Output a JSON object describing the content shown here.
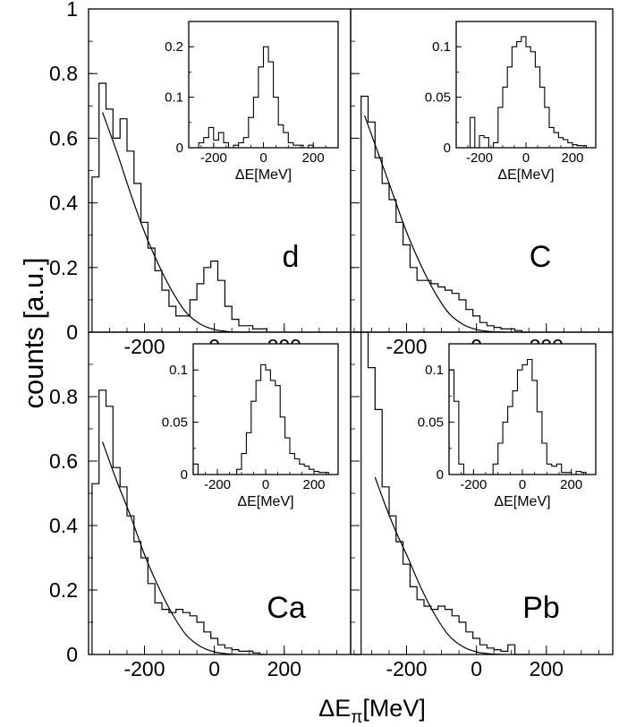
{
  "figure": {
    "ylabel": "counts [a.u.]",
    "xlabel_prefix": "ΔE",
    "xlabel_subscript": "π",
    "xlabel_suffix": "[MeV]"
  },
  "chart_data": [
    {
      "type": "line",
      "panel": "d",
      "xlim": [
        -360,
        390
      ],
      "ylim": [
        0,
        1
      ],
      "x_ticks": [
        "-200",
        "0",
        "200"
      ],
      "y_ticks": [
        "0",
        "0.2",
        "0.4",
        "0.6",
        "0.8",
        "1"
      ],
      "histogram": {
        "bin_edges": [
          -350,
          -330,
          -310,
          -290,
          -270,
          -250,
          -230,
          -210,
          -190,
          -170,
          -150,
          -130,
          -110,
          -90,
          -70,
          -50,
          -30,
          -10,
          10,
          30,
          50,
          70,
          90,
          110,
          130,
          150
        ],
        "values": [
          0.48,
          0.77,
          0.69,
          0.6,
          0.66,
          0.56,
          0.46,
          0.34,
          0.26,
          0.19,
          0.13,
          0.08,
          0.05,
          0.05,
          0.1,
          0.15,
          0.2,
          0.22,
          0.16,
          0.08,
          0.04,
          0.02,
          0.02,
          0.01,
          0.01
        ]
      },
      "fit_curve": {
        "x": [
          -320,
          -280,
          -240,
          -200,
          -160,
          -120,
          -80,
          -40,
          0,
          40,
          80,
          100
        ],
        "y": [
          0.68,
          0.56,
          0.43,
          0.31,
          0.21,
          0.125,
          0.06,
          0.025,
          0.008,
          0.002,
          0.0,
          0.0
        ]
      },
      "inset": {
        "xlabel": "ΔE[MeV]",
        "xlim": [
          -300,
          300
        ],
        "ylim": [
          0,
          0.25
        ],
        "x_ticks": [
          "-200",
          "0",
          "200"
        ],
        "y_ticks": [
          "0",
          "0.1",
          "0.2"
        ],
        "histogram": {
          "bin_edges": [
            -260,
            -240,
            -220,
            -200,
            -180,
            -160,
            -140,
            -120,
            -100,
            -80,
            -60,
            -40,
            -20,
            0,
            20,
            40,
            60,
            80,
            100,
            120,
            140,
            160,
            180,
            200,
            220,
            240,
            260,
            280
          ],
          "values": [
            0.01,
            0.02,
            0.04,
            0.015,
            0.03,
            0.01,
            0.0,
            0.005,
            0.01,
            0.02,
            0.06,
            0.1,
            0.16,
            0.2,
            0.17,
            0.1,
            0.045,
            0.03,
            0.01,
            0.005,
            0.005,
            0.0,
            0.005,
            0.0,
            0.0,
            0.0,
            0.0
          ]
        }
      }
    },
    {
      "type": "line",
      "panel": "C",
      "xlim": [
        -360,
        390
      ],
      "ylim": [
        0,
        1
      ],
      "x_ticks": [
        "-200",
        "0",
        "200"
      ],
      "y_ticks": [],
      "histogram": {
        "bin_edges": [
          -350,
          -330,
          -310,
          -290,
          -270,
          -250,
          -230,
          -210,
          -190,
          -170,
          -150,
          -130,
          -110,
          -90,
          -70,
          -50,
          -30,
          -10,
          10,
          30,
          50,
          70,
          90,
          110,
          130,
          150
        ],
        "values": [
          0.0,
          0.73,
          0.65,
          0.54,
          0.46,
          0.41,
          0.34,
          0.27,
          0.2,
          0.16,
          0.16,
          0.15,
          0.14,
          0.13,
          0.12,
          0.1,
          0.07,
          0.05,
          0.03,
          0.02,
          0.015,
          0.01,
          0.01,
          0.005,
          0.0
        ]
      },
      "fit_curve": {
        "x": [
          -320,
          -280,
          -240,
          -200,
          -160,
          -120,
          -80,
          -40,
          0,
          40,
          80
        ],
        "y": [
          0.67,
          0.55,
          0.43,
          0.31,
          0.21,
          0.125,
          0.06,
          0.025,
          0.008,
          0.002,
          0.0
        ]
      },
      "inset": {
        "xlabel": "ΔE[MeV]",
        "xlim": [
          -300,
          300
        ],
        "ylim": [
          0,
          0.125
        ],
        "x_ticks": [
          "-200",
          "0",
          "200"
        ],
        "y_ticks": [
          "0",
          "0.05",
          "0.1"
        ],
        "histogram": {
          "bin_edges": [
            -260,
            -240,
            -220,
            -200,
            -180,
            -160,
            -140,
            -120,
            -100,
            -80,
            -60,
            -40,
            -20,
            0,
            20,
            40,
            60,
            80,
            100,
            120,
            140,
            160,
            180,
            200,
            220,
            240,
            260,
            280
          ],
          "values": [
            0.0,
            0.03,
            0.0,
            0.012,
            0.01,
            0.0,
            0.005,
            0.04,
            0.06,
            0.08,
            0.1,
            0.105,
            0.11,
            0.1,
            0.095,
            0.08,
            0.06,
            0.04,
            0.02,
            0.015,
            0.01,
            0.008,
            0.005,
            0.003,
            0.002,
            0.002,
            0.0
          ]
        }
      }
    },
    {
      "type": "line",
      "panel": "Ca",
      "xlim": [
        -360,
        390
      ],
      "ylim": [
        0,
        1
      ],
      "x_ticks": [
        "-200",
        "0",
        "200"
      ],
      "y_ticks": [
        "0",
        "0.2",
        "0.4",
        "0.6",
        "0.8"
      ],
      "histogram": {
        "bin_edges": [
          -350,
          -330,
          -310,
          -290,
          -270,
          -250,
          -230,
          -210,
          -190,
          -170,
          -150,
          -130,
          -110,
          -90,
          -70,
          -50,
          -30,
          -10,
          10,
          30,
          50,
          70,
          90,
          110,
          130,
          150
        ],
        "values": [
          0.53,
          0.82,
          0.77,
          0.58,
          0.52,
          0.43,
          0.35,
          0.3,
          0.22,
          0.16,
          0.14,
          0.13,
          0.14,
          0.13,
          0.12,
          0.1,
          0.07,
          0.05,
          0.03,
          0.02,
          0.015,
          0.01,
          0.01,
          0.005,
          0.0
        ]
      },
      "fit_curve": {
        "x": [
          -320,
          -280,
          -240,
          -200,
          -160,
          -120,
          -80,
          -40,
          0,
          40,
          80
        ],
        "y": [
          0.66,
          0.54,
          0.43,
          0.31,
          0.21,
          0.125,
          0.06,
          0.025,
          0.008,
          0.002,
          0.0
        ]
      },
      "inset": {
        "xlabel": "ΔE[MeV]",
        "xlim": [
          -300,
          300
        ],
        "ylim": [
          0,
          0.125
        ],
        "x_ticks": [
          "-200",
          "0",
          "200"
        ],
        "y_ticks": [
          "0",
          "0.05",
          "0.1"
        ],
        "histogram": {
          "bin_edges": [
            -300,
            -280,
            -260,
            -240,
            -220,
            -200,
            -180,
            -160,
            -140,
            -120,
            -100,
            -80,
            -60,
            -40,
            -20,
            0,
            20,
            40,
            60,
            80,
            100,
            120,
            140,
            160,
            180,
            200,
            220,
            240,
            260,
            280,
            300
          ],
          "values": [
            0.01,
            0.0,
            0.0,
            0.0,
            0.0,
            0.0,
            0.0,
            0.0,
            0.0,
            0.005,
            0.02,
            0.04,
            0.07,
            0.09,
            0.105,
            0.1,
            0.09,
            0.085,
            0.055,
            0.035,
            0.02,
            0.015,
            0.01,
            0.008,
            0.005,
            0.003,
            0.002,
            0.002,
            0.0,
            0.0
          ]
        }
      }
    },
    {
      "type": "line",
      "panel": "Pb",
      "xlim": [
        -360,
        390
      ],
      "ylim": [
        0,
        1
      ],
      "x_ticks": [
        "-200",
        "0",
        "200"
      ],
      "y_ticks": [],
      "histogram": {
        "bin_edges": [
          -350,
          -330,
          -310,
          -290,
          -270,
          -250,
          -230,
          -210,
          -190,
          -170,
          -150,
          -130,
          -110,
          -90,
          -70,
          -50,
          -30,
          -10,
          10,
          30,
          50,
          70,
          90,
          110,
          130,
          150
        ],
        "values": [
          0.0,
          1.05,
          0.89,
          0.76,
          0.52,
          0.43,
          0.35,
          0.28,
          0.21,
          0.17,
          0.15,
          0.14,
          0.15,
          0.14,
          0.12,
          0.1,
          0.07,
          0.05,
          0.03,
          0.02,
          0.015,
          0.01,
          0.03,
          0.0,
          0.0
        ]
      },
      "fit_curve": {
        "x": [
          -290,
          -260,
          -230,
          -200,
          -160,
          -120,
          -80,
          -40,
          0,
          40,
          80
        ],
        "y": [
          0.55,
          0.46,
          0.38,
          0.31,
          0.21,
          0.125,
          0.06,
          0.025,
          0.008,
          0.002,
          0.0
        ]
      },
      "inset": {
        "xlabel": "ΔE[MeV]",
        "xlim": [
          -300,
          300
        ],
        "ylim": [
          0,
          0.125
        ],
        "x_ticks": [
          "-200",
          "0",
          "200"
        ],
        "y_ticks": [
          "0",
          "0.05",
          "0.1"
        ],
        "histogram": {
          "bin_edges": [
            -300,
            -280,
            -260,
            -240,
            -220,
            -200,
            -180,
            -160,
            -140,
            -120,
            -100,
            -80,
            -60,
            -40,
            -20,
            0,
            20,
            40,
            60,
            80,
            100,
            120,
            140,
            160,
            180,
            200,
            220,
            240,
            260,
            280,
            300
          ],
          "values": [
            0.1,
            0.07,
            0.01,
            0.0,
            0.0,
            0.0,
            0.0,
            0.0,
            0.0,
            0.01,
            0.03,
            0.05,
            0.065,
            0.08,
            0.1,
            0.105,
            0.11,
            0.09,
            0.06,
            0.03,
            0.01,
            0.008,
            0.01,
            0.002,
            0.002,
            0.0,
            0.003,
            0.002,
            0.0,
            0.0
          ]
        }
      }
    }
  ]
}
